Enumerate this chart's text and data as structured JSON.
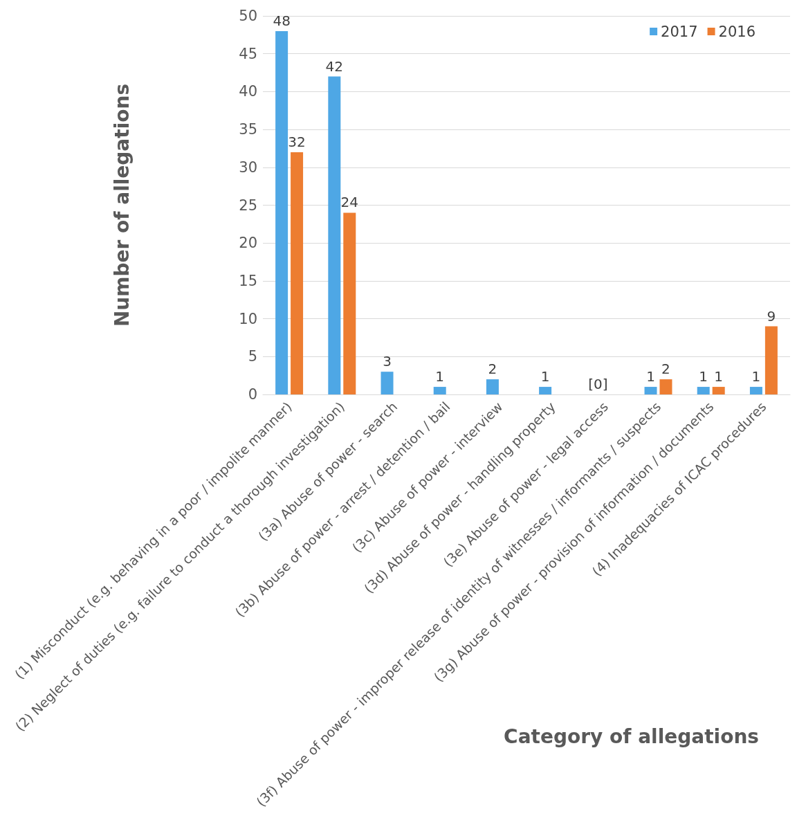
{
  "chart_data": {
    "type": "bar",
    "xlabel": "Category of allegations",
    "ylabel": "Number of allegations",
    "categories": [
      "(1) Misconduct (e.g. behaving in a poor / impolite manner)",
      "(2) Neglect of duties (e.g. failure to conduct a thorough investigation)",
      "(3a) Abuse of power - search",
      "(3b) Abuse of power - arrest / detention / bail",
      "(3c) Abuse of power - interview",
      "(3d) Abuse of power - handling property",
      "(3e) Abuse of power - legal access",
      "(3f) Abuse of power - improper release of identity of witnesses / informants / suspects",
      "(3g) Abuse of power - provision of information / documents",
      "(4) Inadequacies of ICAC procedures"
    ],
    "series": [
      {
        "name": "2017",
        "color": "#4ea7e5",
        "values": [
          48,
          42,
          3,
          1,
          2,
          1,
          0,
          1,
          1,
          1
        ],
        "value_labels": [
          "48",
          "42",
          "3",
          "1",
          "2",
          "1",
          "[0]",
          "1",
          "1",
          "1"
        ]
      },
      {
        "name": "2016",
        "color": "#ed7d31",
        "values": [
          32,
          24,
          null,
          null,
          null,
          null,
          null,
          2,
          1,
          9
        ],
        "value_labels": [
          "32",
          "24",
          null,
          null,
          null,
          null,
          null,
          "2",
          "1",
          "9"
        ]
      }
    ],
    "ylim": [
      0,
      50
    ],
    "yticks": [
      0,
      5,
      10,
      15,
      20,
      25,
      30,
      35,
      40,
      45,
      50
    ],
    "grid": "y",
    "legend": "top right"
  }
}
